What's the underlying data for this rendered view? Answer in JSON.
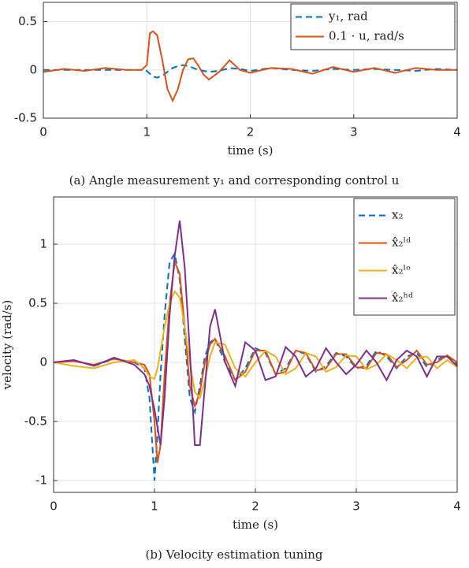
{
  "chart_data": [
    {
      "type": "line",
      "xlabel": "time (s)",
      "caption": "(a) Angle measurement y₁ and corresponding control u",
      "x": [
        0,
        0.2,
        0.4,
        0.6,
        0.8,
        0.95,
        1.0,
        1.03,
        1.06,
        1.1,
        1.15,
        1.2,
        1.25,
        1.3,
        1.35,
        1.4,
        1.45,
        1.5,
        1.55,
        1.6,
        1.7,
        1.8,
        1.9,
        2.0,
        2.2,
        2.4,
        2.6,
        2.8,
        3.0,
        3.2,
        3.4,
        3.6,
        3.8,
        4.0
      ],
      "series": [
        {
          "name": "y₁, rad",
          "color": "#0072BD",
          "style": "dashed",
          "values": [
            0,
            0,
            0,
            0,
            0,
            0,
            -0.01,
            -0.04,
            -0.07,
            -0.08,
            -0.06,
            -0.02,
            0.02,
            0.04,
            0.05,
            0.04,
            0.02,
            0,
            -0.01,
            -0.02,
            -0.01,
            0.02,
            0.01,
            -0.01,
            0.02,
            0,
            -0.01,
            0.01,
            0,
            0.01,
            0,
            -0.01,
            0.01,
            0
          ]
        },
        {
          "name": "0.1 · u, rad/s",
          "color": "#D95319",
          "style": "solid",
          "values": [
            -0.02,
            0.01,
            -0.01,
            0.02,
            0,
            0,
            0.05,
            0.38,
            0.4,
            0.36,
            0.1,
            -0.2,
            -0.32,
            -0.2,
            0,
            0.11,
            0.12,
            0.04,
            -0.05,
            -0.1,
            -0.02,
            0.1,
            0,
            -0.03,
            0.02,
            0.01,
            -0.04,
            0.03,
            -0.02,
            0.02,
            -0.03,
            0.02,
            0,
            0
          ]
        }
      ],
      "xlim": [
        0,
        4
      ],
      "xticks": [
        0,
        1,
        2,
        3,
        4
      ],
      "ylim": [
        -0.5,
        0.7
      ],
      "yticks": [
        -0.5,
        0,
        0.5
      ],
      "grid": true,
      "legend": "upper right"
    },
    {
      "type": "line",
      "xlabel": "time (s)",
      "ylabel": "velocity (rad/s)",
      "caption": "(b) Velocity estimation tuning",
      "x": [
        0,
        0.2,
        0.4,
        0.6,
        0.8,
        0.9,
        0.95,
        1.0,
        1.03,
        1.06,
        1.1,
        1.15,
        1.2,
        1.25,
        1.3,
        1.35,
        1.4,
        1.45,
        1.5,
        1.55,
        1.6,
        1.7,
        1.8,
        1.9,
        2.0,
        2.1,
        2.2,
        2.3,
        2.4,
        2.5,
        2.6,
        2.7,
        2.8,
        2.9,
        3.0,
        3.1,
        3.2,
        3.3,
        3.4,
        3.5,
        3.6,
        3.7,
        3.8,
        3.9,
        4.0
      ],
      "series": [
        {
          "name": "x₂",
          "color": "#0072BD",
          "style": "dashed",
          "values": [
            0,
            0.02,
            -0.03,
            0.03,
            0,
            -0.05,
            -0.3,
            -1.0,
            -0.6,
            -0.1,
            0.4,
            0.85,
            0.92,
            0.7,
            0.2,
            -0.3,
            -0.42,
            -0.2,
            0.05,
            0.17,
            0.2,
            0,
            -0.15,
            -0.05,
            0.12,
            0.08,
            -0.1,
            -0.05,
            0.1,
            0.07,
            -0.08,
            -0.03,
            0.08,
            0.05,
            -0.05,
            -0.03,
            0.1,
            0.05,
            -0.05,
            0.05,
            0.08,
            -0.04,
            0.02,
            0.06,
            -0.02
          ]
        },
        {
          "name": "x̂₂ˡᵈ",
          "color": "#D95319",
          "style": "solid",
          "values": [
            0,
            0.01,
            -0.02,
            0.03,
            0,
            -0.02,
            -0.1,
            -0.5,
            -0.85,
            -0.7,
            -0.1,
            0.5,
            0.85,
            0.75,
            0.3,
            -0.2,
            -0.37,
            -0.25,
            0,
            0.15,
            0.2,
            0.05,
            -0.15,
            -0.08,
            0.1,
            0.1,
            -0.1,
            -0.08,
            0.1,
            0.08,
            -0.07,
            -0.05,
            0.07,
            0.07,
            -0.04,
            -0.05,
            0.08,
            0.07,
            -0.04,
            0.02,
            0.1,
            -0.02,
            0,
            0.06,
            0
          ]
        },
        {
          "name": "x̂₂ˡᵒ",
          "color": "#EDB120",
          "style": "solid",
          "values": [
            0,
            -0.03,
            -0.05,
            0,
            0.02,
            -0.05,
            -0.12,
            -0.14,
            -0.05,
            0.1,
            0.3,
            0.5,
            0.6,
            0.55,
            0.3,
            0,
            -0.25,
            -0.3,
            -0.15,
            0.05,
            0.17,
            0.15,
            -0.05,
            -0.12,
            0,
            0.1,
            0.05,
            -0.1,
            -0.05,
            0.08,
            0.05,
            -0.08,
            -0.04,
            0.06,
            0.05,
            -0.06,
            -0.02,
            0.07,
            0.02,
            -0.05,
            0.04,
            0.05,
            -0.05,
            0.02,
            -0.04
          ]
        },
        {
          "name": "x̂₂ʰᵈ",
          "color": "#7E2F8E",
          "style": "solid",
          "values": [
            0,
            0.02,
            -0.03,
            0.04,
            -0.02,
            -0.1,
            -0.2,
            -0.4,
            -0.55,
            -0.7,
            -0.3,
            0.4,
            0.9,
            1.2,
            0.8,
            0.1,
            -0.7,
            -0.7,
            -0.2,
            0.3,
            0.45,
            0,
            -0.2,
            0.17,
            0.1,
            -0.15,
            -0.12,
            0.13,
            0.05,
            -0.12,
            -0.05,
            0.12,
            0,
            -0.1,
            -0.02,
            0.1,
            0,
            -0.15,
            0.02,
            0.1,
            0.05,
            -0.12,
            0.05,
            0.05,
            -0.03
          ]
        }
      ],
      "xlim": [
        0,
        4
      ],
      "xticks": [
        0,
        1,
        2,
        3,
        4
      ],
      "ylim": [
        -1.1,
        1.4
      ],
      "yticks": [
        -1,
        -0.5,
        0,
        0.5,
        1
      ],
      "grid": true,
      "legend": "upper right"
    }
  ]
}
